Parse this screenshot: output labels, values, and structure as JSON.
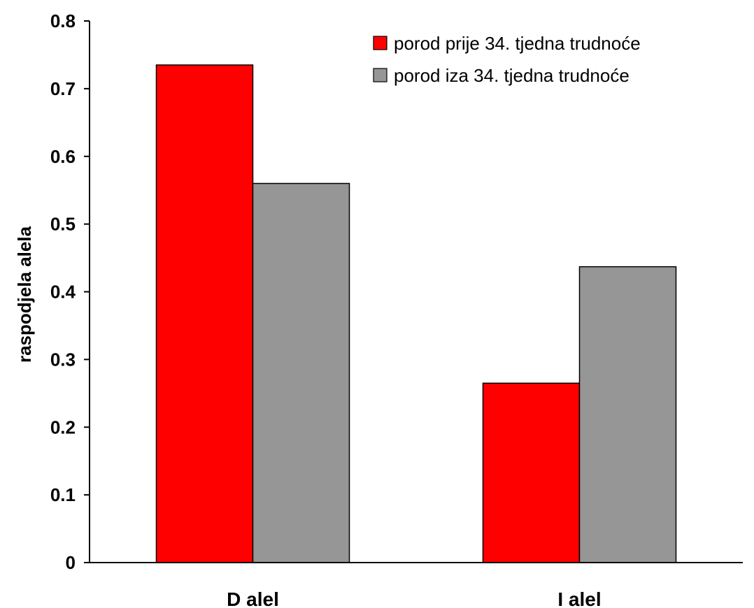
{
  "chart_data": {
    "type": "bar",
    "categories": [
      "D alel",
      "I alel"
    ],
    "series": [
      {
        "name": "porod prije 34. tjedna trudnoće",
        "color": "#ff0000",
        "values": [
          0.735,
          0.265
        ]
      },
      {
        "name": "porod iza 34. tjedna trudnoće",
        "color": "#969696",
        "values": [
          0.56,
          0.437
        ]
      }
    ],
    "ylabel": "raspodjela alela",
    "xlabel": "",
    "ylim": [
      0,
      0.8
    ],
    "yticks": [
      "0",
      "0.1",
      "0.2",
      "0.3",
      "0.4",
      "0.5",
      "0.6",
      "0.7",
      "0.8"
    ],
    "grid": false,
    "legend_position": "top-right"
  }
}
